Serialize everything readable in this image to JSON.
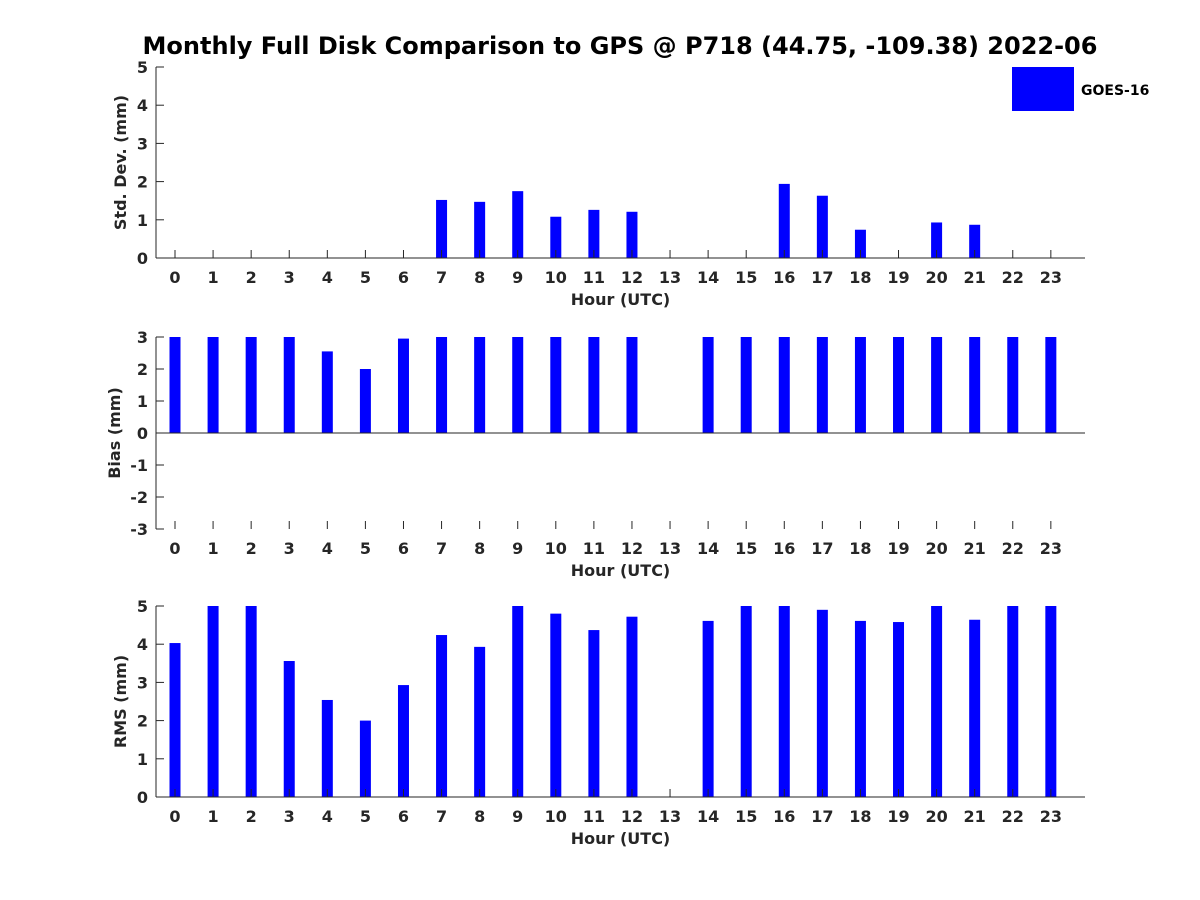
{
  "figure": {
    "title": "Monthly Full Disk Comparison to GPS @ P718 (44.75, -109.38) 2022-06",
    "legend": {
      "label": "GOES-16",
      "color": "#0000ff",
      "placement": "top-right"
    }
  },
  "chart_data": [
    {
      "type": "bar",
      "name": "std-dev",
      "xlabel": "Hour (UTC)",
      "ylabel": "Std. Dev. (mm)",
      "categories": [
        "0",
        "1",
        "2",
        "3",
        "4",
        "5",
        "6",
        "7",
        "8",
        "9",
        "10",
        "11",
        "12",
        "13",
        "14",
        "15",
        "16",
        "17",
        "18",
        "19",
        "20",
        "21",
        "22",
        "23"
      ],
      "ylim": [
        0,
        5
      ],
      "yticks": [
        "0",
        "1",
        "2",
        "3",
        "4",
        "5"
      ],
      "series": [
        {
          "name": "GOES-16",
          "color": "#0000ff",
          "values": [
            null,
            null,
            null,
            null,
            null,
            null,
            null,
            1.52,
            1.47,
            1.75,
            1.08,
            1.26,
            1.21,
            null,
            null,
            null,
            1.94,
            1.63,
            0.74,
            null,
            0.93,
            0.87,
            null,
            null
          ]
        }
      ]
    },
    {
      "type": "bar",
      "name": "bias",
      "xlabel": "Hour (UTC)",
      "ylabel": "Bias (mm)",
      "categories": [
        "0",
        "1",
        "2",
        "3",
        "4",
        "5",
        "6",
        "7",
        "8",
        "9",
        "10",
        "11",
        "12",
        "13",
        "14",
        "15",
        "16",
        "17",
        "18",
        "19",
        "20",
        "21",
        "22",
        "23"
      ],
      "ylim": [
        -3,
        3
      ],
      "yticks": [
        "-3",
        "-2",
        "-1",
        "0",
        "1",
        "2",
        "3"
      ],
      "series": [
        {
          "name": "GOES-16",
          "color": "#0000ff",
          "values": [
            3,
            3,
            3,
            3,
            2.55,
            2.0,
            2.95,
            3,
            3,
            3,
            3,
            3,
            3,
            null,
            3,
            3,
            3,
            3,
            3,
            3,
            3,
            3,
            3,
            3
          ]
        }
      ]
    },
    {
      "type": "bar",
      "name": "rms",
      "xlabel": "Hour (UTC)",
      "ylabel": "RMS (mm)",
      "categories": [
        "0",
        "1",
        "2",
        "3",
        "4",
        "5",
        "6",
        "7",
        "8",
        "9",
        "10",
        "11",
        "12",
        "13",
        "14",
        "15",
        "16",
        "17",
        "18",
        "19",
        "20",
        "21",
        "22",
        "23"
      ],
      "ylim": [
        0,
        5
      ],
      "yticks": [
        "0",
        "1",
        "2",
        "3",
        "4",
        "5"
      ],
      "series": [
        {
          "name": "GOES-16",
          "color": "#0000ff",
          "values": [
            4.03,
            5,
            5,
            3.56,
            2.54,
            2.0,
            2.93,
            4.24,
            3.93,
            5,
            4.8,
            4.37,
            4.72,
            null,
            4.61,
            5,
            5,
            4.9,
            4.61,
            4.58,
            5,
            4.64,
            5,
            5
          ]
        }
      ]
    }
  ]
}
